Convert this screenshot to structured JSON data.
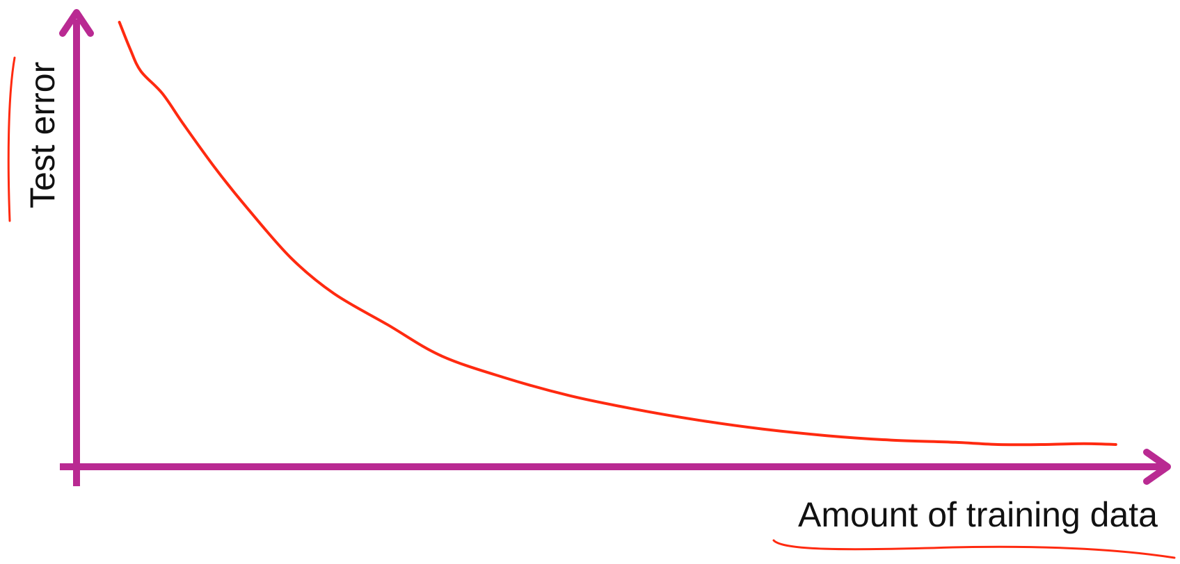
{
  "chart_data": {
    "type": "line",
    "xlabel": "Amount of training data",
    "ylabel": "Test error",
    "grid": false,
    "x_ticks": [],
    "y_ticks": [],
    "xlim": [
      0,
      1
    ],
    "ylim": [
      0,
      1
    ],
    "series": [
      {
        "x": [
          0.04,
          0.05,
          0.06,
          0.08,
          0.1,
          0.13,
          0.16,
          0.2,
          0.24,
          0.29,
          0.34,
          0.4,
          0.46,
          0.52,
          0.58,
          0.64,
          0.7,
          0.76,
          0.82,
          0.86,
          0.9,
          0.94,
          0.97
        ],
        "values": [
          1.0,
          0.94,
          0.89,
          0.84,
          0.77,
          0.67,
          0.58,
          0.47,
          0.39,
          0.32,
          0.25,
          0.2,
          0.16,
          0.13,
          0.105,
          0.085,
          0.07,
          0.06,
          0.055,
          0.05,
          0.05,
          0.052,
          0.05
        ],
        "color": "#ff2a10"
      }
    ],
    "colors": {
      "axes": "#b92a92",
      "curve": "#ff2a10",
      "annotation": "#ff2a10",
      "text": "#111111"
    }
  }
}
